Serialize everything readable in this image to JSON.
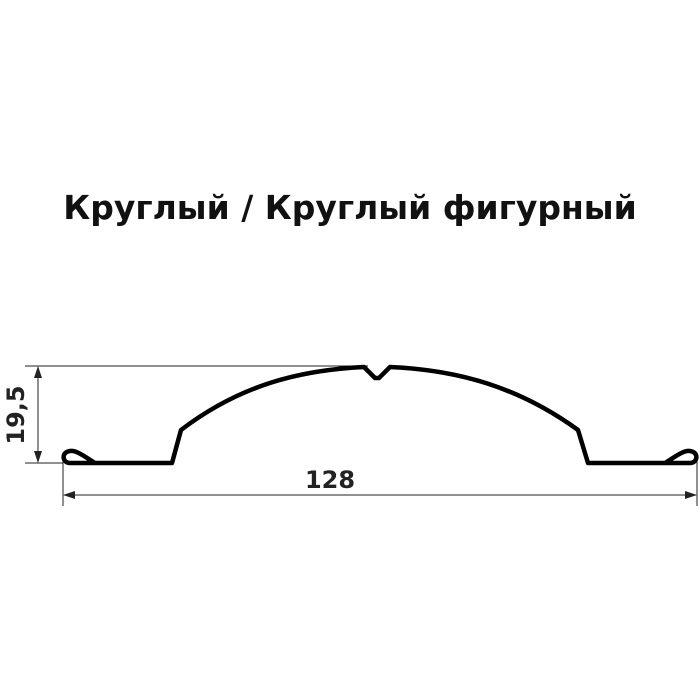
{
  "title": "Круглый / Круглый фигурный",
  "dimensions": {
    "height_label": "19,5",
    "width_label": "128"
  },
  "colors": {
    "profile": "#000000",
    "dimension_lines": "#222222"
  }
}
